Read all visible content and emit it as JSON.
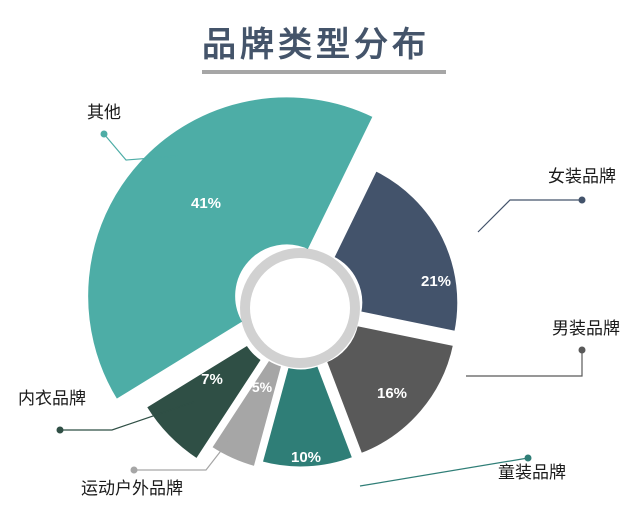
{
  "chart_data": {
    "type": "pie",
    "title": "品牌类型分布",
    "categories": [
      "女装品牌",
      "男装品牌",
      "童装品牌",
      "运动户外品牌",
      "内衣品牌",
      "其他"
    ],
    "values": [
      21,
      16,
      10,
      5,
      7,
      41
    ],
    "value_labels": [
      "21%",
      "16%",
      "10%",
      "5%",
      "7%",
      "41%"
    ],
    "colors": [
      "#43536b",
      "#595959",
      "#2f7e77",
      "#a6a6a6",
      "#2f4f45",
      "#4dada6"
    ],
    "legend": "none"
  }
}
